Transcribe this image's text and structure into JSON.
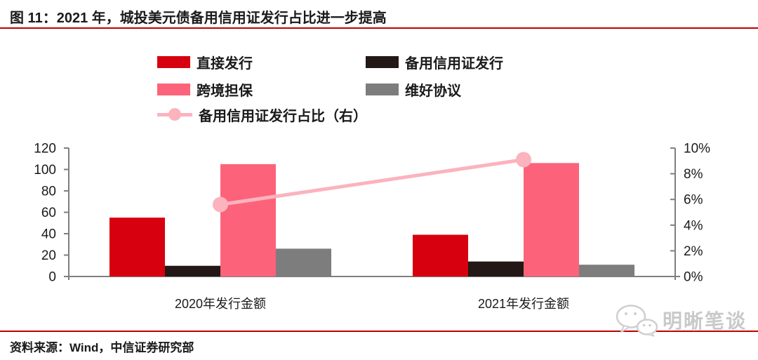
{
  "title": "图 11：2021 年，城投美元债备用信用证发行占比进一步提高",
  "source": "资料来源：Wind，中信证券研究部",
  "watermark": {
    "label": "明晰笔谈"
  },
  "colors": {
    "direct": "#D7000F",
    "sblc": "#231815",
    "guarantee": "#FC637A",
    "keepwell": "#7D7D7D",
    "ratio_line": "#FBB3BE",
    "rule_red": "#C00000",
    "axis": "#7F7F7F",
    "text": "#1A1A1A"
  },
  "legend": {
    "items": [
      {
        "label": "直接发行",
        "color_key": "direct",
        "type": "bar"
      },
      {
        "label": "备用信用证发行",
        "color_key": "sblc",
        "type": "bar"
      },
      {
        "label": "跨境担保",
        "color_key": "guarantee",
        "type": "bar"
      },
      {
        "label": "维好协议",
        "color_key": "keepwell",
        "type": "bar"
      },
      {
        "label": "备用信用证发行占比（右）",
        "color_key": "ratio_line",
        "type": "line"
      }
    ]
  },
  "chart_data": {
    "type": "bar",
    "subtype": "grouped bars with secondary-axis line",
    "categories": [
      "2020年发行金额",
      "2021年发行金额"
    ],
    "series": [
      {
        "key": "direct",
        "name": "直接发行",
        "type": "bar",
        "axis": "left",
        "color_key": "direct",
        "values": [
          55,
          39
        ]
      },
      {
        "key": "sblc",
        "name": "备用信用证发行",
        "type": "bar",
        "axis": "left",
        "color_key": "sblc",
        "values": [
          10,
          14
        ]
      },
      {
        "key": "guarantee",
        "name": "跨境担保",
        "type": "bar",
        "axis": "left",
        "color_key": "guarantee",
        "values": [
          105,
          106
        ]
      },
      {
        "key": "keepwell",
        "name": "维好协议",
        "type": "bar",
        "axis": "left",
        "color_key": "keepwell",
        "values": [
          26,
          11
        ]
      },
      {
        "key": "ratio",
        "name": "备用信用证发行占比（右）",
        "type": "line",
        "axis": "right",
        "color_key": "ratio_line",
        "values": [
          5.6,
          9.1
        ]
      }
    ],
    "left_axis": {
      "min": 0,
      "max": 120,
      "step": 20,
      "ticks": [
        "0",
        "20",
        "40",
        "60",
        "80",
        "100",
        "120"
      ]
    },
    "right_axis": {
      "min": 0,
      "max": 10,
      "step": 2,
      "ticks": [
        "0%",
        "2%",
        "4%",
        "6%",
        "8%",
        "10%"
      ]
    },
    "grid": false,
    "legend_position": "top"
  }
}
